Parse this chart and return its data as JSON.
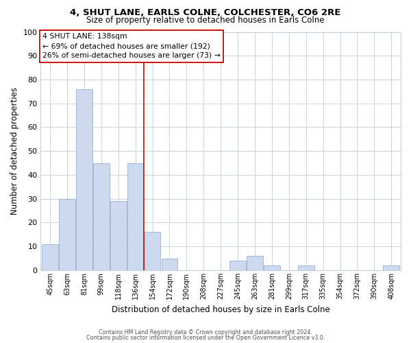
{
  "title": "4, SHUT LANE, EARLS COLNE, COLCHESTER, CO6 2RE",
  "subtitle": "Size of property relative to detached houses in Earls Colne",
  "xlabel": "Distribution of detached houses by size in Earls Colne",
  "ylabel": "Number of detached properties",
  "bar_color": "#ccd9ee",
  "bar_edge_color": "#9ab0d0",
  "categories": [
    "45sqm",
    "63sqm",
    "81sqm",
    "99sqm",
    "118sqm",
    "136sqm",
    "154sqm",
    "172sqm",
    "190sqm",
    "208sqm",
    "227sqm",
    "245sqm",
    "263sqm",
    "281sqm",
    "299sqm",
    "317sqm",
    "335sqm",
    "354sqm",
    "372sqm",
    "390sqm",
    "408sqm"
  ],
  "values": [
    11,
    30,
    76,
    45,
    29,
    45,
    16,
    5,
    0,
    0,
    0,
    4,
    6,
    2,
    0,
    2,
    0,
    0,
    0,
    0,
    2
  ],
  "ylim": [
    0,
    100
  ],
  "yticks": [
    0,
    10,
    20,
    30,
    40,
    50,
    60,
    70,
    80,
    90,
    100
  ],
  "vline_color": "#cc0000",
  "annotation_title": "4 SHUT LANE: 138sqm",
  "annotation_line1": "← 69% of detached houses are smaller (192)",
  "annotation_line2": "26% of semi-detached houses are larger (73) →",
  "footer_line1": "Contains HM Land Registry data © Crown copyright and database right 2024.",
  "footer_line2": "Contains public sector information licensed under the Open Government Licence v3.0.",
  "background_color": "#ffffff",
  "grid_color": "#c0cce0"
}
